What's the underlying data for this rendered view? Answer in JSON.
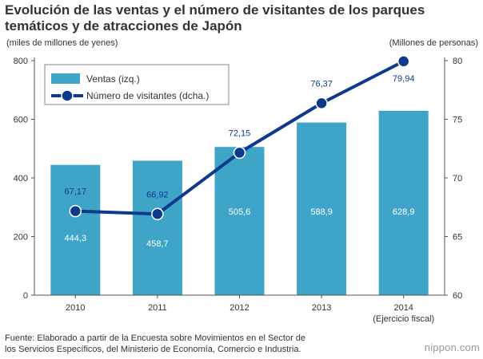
{
  "title_lines": [
    "Evolución de las ventas y el número de visitantes de los parques",
    "temáticos y de atracciones de Japón"
  ],
  "source_lines": [
    "Fuente: Elaborado a partir de la Encuesta sobre Movimientos en el Sector de",
    "los Servicios Específicos, del Ministerio de Economía, Comercio e Industria."
  ],
  "brand": "nippon.com",
  "chart_data": {
    "type": "bar",
    "categories": [
      "2010",
      "2011",
      "2012",
      "2013",
      "2014"
    ],
    "x_note": "(Ejercicio fiscal)",
    "y_left_label": "(miles de millones de yenes)",
    "y_right_label": "(Millones de personas)",
    "y_left_range": [
      0,
      800
    ],
    "y_left_ticks": [
      "0",
      "200",
      "400",
      "600",
      "800"
    ],
    "y_right_range": [
      60,
      80
    ],
    "y_right_ticks": [
      "60",
      "65",
      "70",
      "75",
      "80"
    ],
    "series": [
      {
        "name": "Ventas (izq.)",
        "kind": "bar",
        "axis": "left",
        "color": "#3ea4c8",
        "values": [
          444.3,
          458.7,
          505.6,
          588.9,
          628.9
        ],
        "labels": [
          "444,3",
          "458,7",
          "505,6",
          "588,9",
          "628,9"
        ]
      },
      {
        "name": "Número de visitantes (dcha.)",
        "kind": "line",
        "axis": "right",
        "color": "#0d3a8c",
        "values": [
          67.17,
          66.92,
          72.15,
          76.37,
          79.94
        ],
        "labels": [
          "67,17",
          "66,92",
          "72,15",
          "76,37",
          "79,94"
        ]
      }
    ],
    "legend_position": "top-left",
    "grid": false
  }
}
